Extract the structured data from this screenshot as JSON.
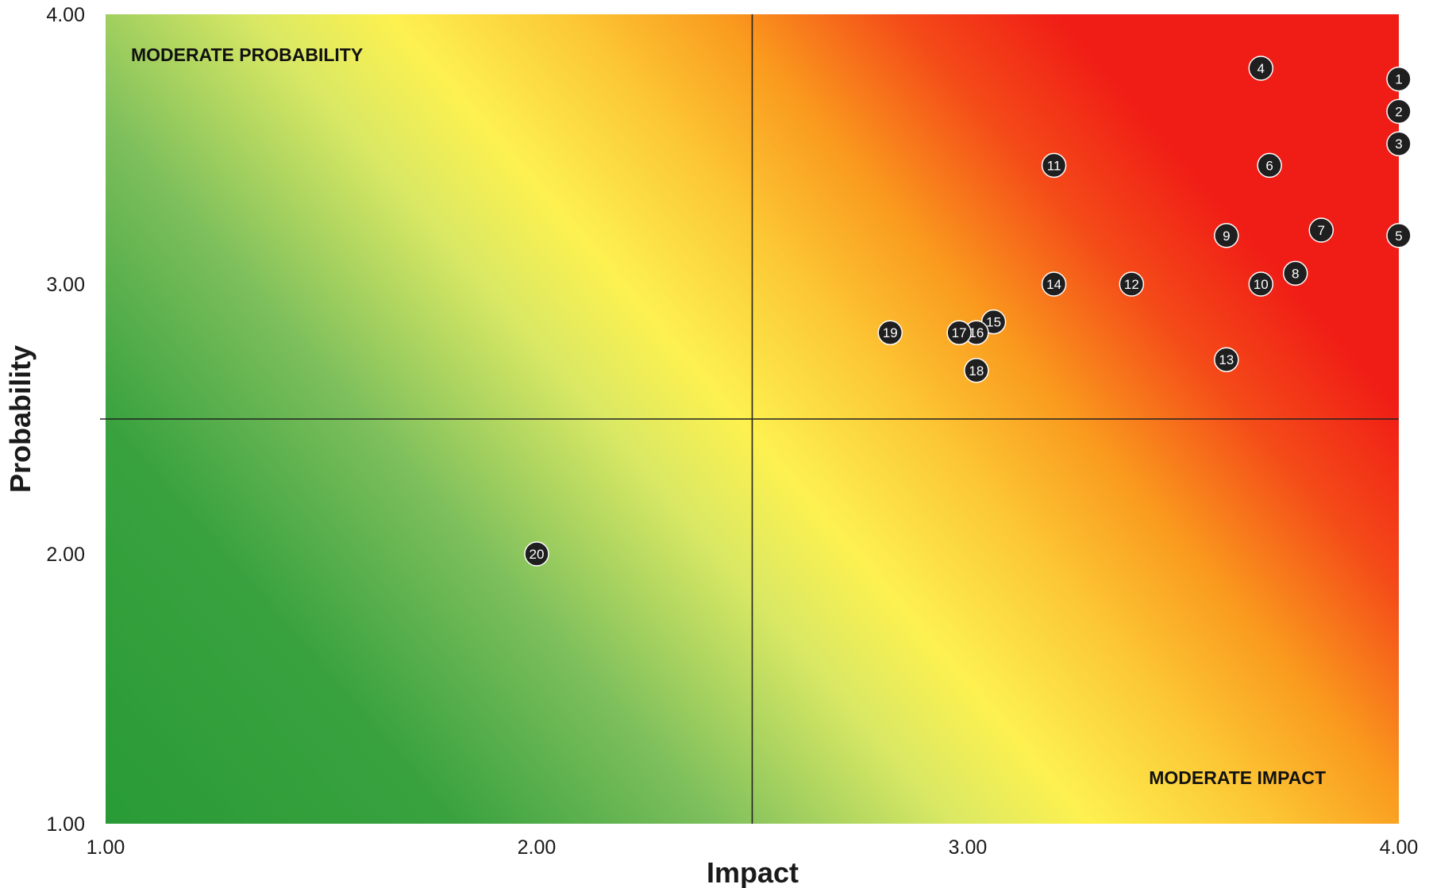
{
  "chart_data": {
    "type": "scatter",
    "xlabel": "Impact",
    "ylabel": "Probability",
    "xlim": [
      1.0,
      4.0
    ],
    "ylim": [
      1.0,
      4.0
    ],
    "xticks": [
      "1.00",
      "2.00",
      "3.00",
      "4.00"
    ],
    "yticks": [
      "1.00",
      "2.00",
      "3.00",
      "4.00"
    ],
    "quadrant_dividers": {
      "x": 2.5,
      "y": 2.5
    },
    "annotations": [
      "MODERATE PROBABILITY",
      "MODERATE IMPACT"
    ],
    "background": "diagonal gradient from green (low impact/probability) through yellow to red (high impact/probability)",
    "colors": {
      "green": "#2e9d3a",
      "yellow": "#fdf04f",
      "orange": "#fa9a1e",
      "red": "#f01d16",
      "marker": "#1f1f1f"
    },
    "points": [
      {
        "label": "1",
        "x": 4.0,
        "y": 3.76
      },
      {
        "label": "2",
        "x": 4.0,
        "y": 3.64
      },
      {
        "label": "3",
        "x": 4.0,
        "y": 3.52
      },
      {
        "label": "4",
        "x": 3.68,
        "y": 3.8
      },
      {
        "label": "5",
        "x": 4.0,
        "y": 3.18
      },
      {
        "label": "6",
        "x": 3.7,
        "y": 3.44
      },
      {
        "label": "7",
        "x": 3.82,
        "y": 3.2
      },
      {
        "label": "8",
        "x": 3.76,
        "y": 3.04
      },
      {
        "label": "9",
        "x": 3.6,
        "y": 3.18
      },
      {
        "label": "10",
        "x": 3.68,
        "y": 3.0
      },
      {
        "label": "11",
        "x": 3.2,
        "y": 3.44
      },
      {
        "label": "12",
        "x": 3.38,
        "y": 3.0
      },
      {
        "label": "13",
        "x": 3.6,
        "y": 2.72
      },
      {
        "label": "14",
        "x": 3.2,
        "y": 3.0
      },
      {
        "label": "15",
        "x": 3.06,
        "y": 2.86
      },
      {
        "label": "16",
        "x": 3.02,
        "y": 2.82
      },
      {
        "label": "17",
        "x": 2.98,
        "y": 2.82
      },
      {
        "label": "18",
        "x": 3.02,
        "y": 2.68
      },
      {
        "label": "19",
        "x": 2.82,
        "y": 2.82
      },
      {
        "label": "20",
        "x": 2.0,
        "y": 2.0
      }
    ]
  }
}
